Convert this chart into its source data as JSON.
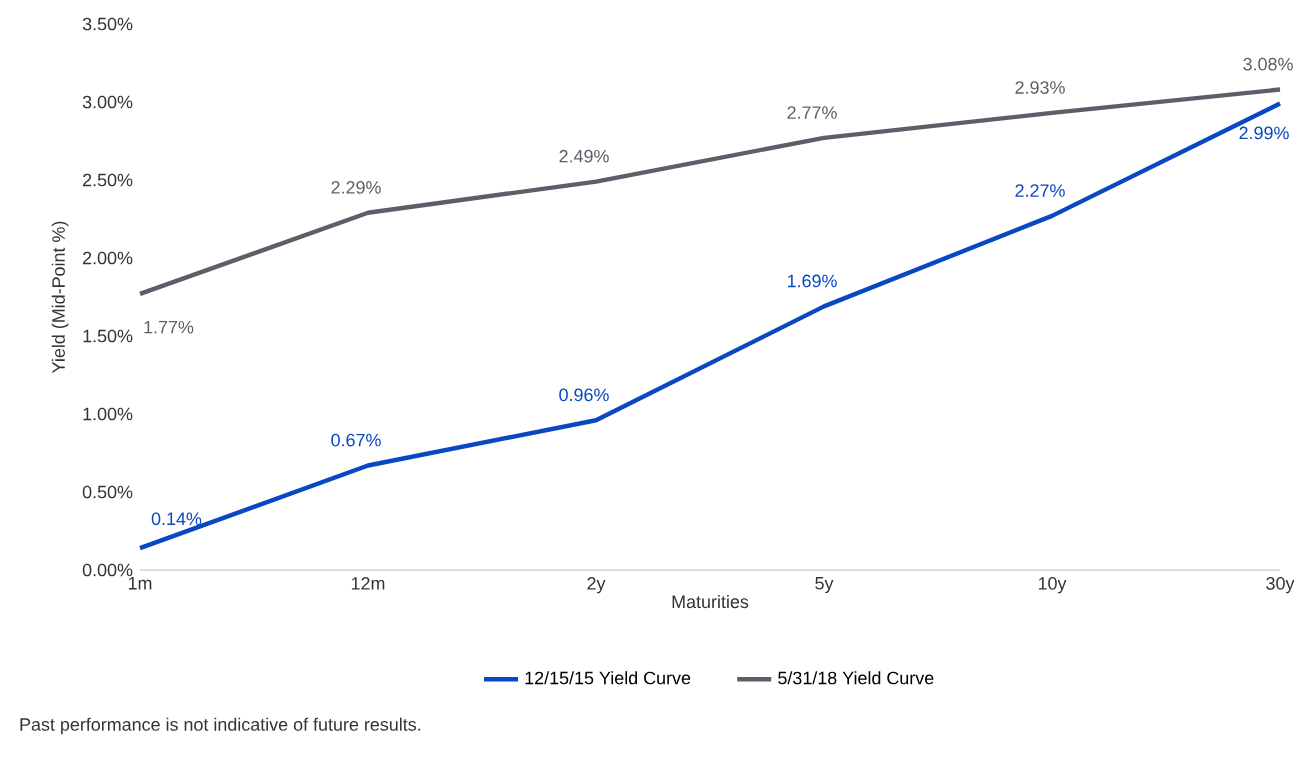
{
  "chart_data": {
    "type": "line",
    "xlabel": "Maturities",
    "ylabel": "Yield (Mid-Point %)",
    "categories": [
      "1m",
      "12m",
      "2y",
      "5y",
      "10y",
      "30y"
    ],
    "ylim": [
      0,
      3.5
    ],
    "yticks": [
      {
        "value": 0,
        "label": "0.00%"
      },
      {
        "value": 0.5,
        "label": "0.50%"
      },
      {
        "value": 1,
        "label": "1.00%"
      },
      {
        "value": 1.5,
        "label": "1.50%"
      },
      {
        "value": 2,
        "label": "2.00%"
      },
      {
        "value": 2.5,
        "label": "2.50%"
      },
      {
        "value": 3,
        "label": "3.00%"
      },
      {
        "value": 3.5,
        "label": "3.50%"
      }
    ],
    "series": [
      {
        "name": "12/15/15 Yield Curve",
        "color": "#0a47c2",
        "values": [
          0.14,
          0.67,
          0.96,
          1.69,
          2.27,
          2.99
        ],
        "value_labels": [
          "0.14%",
          "0.67%",
          "0.96%",
          "1.69%",
          "2.27%",
          "2.99%"
        ]
      },
      {
        "name": "5/31/18 Yield Curve",
        "color": "#5b6068",
        "values": [
          1.77,
          2.29,
          2.49,
          2.77,
          2.93,
          3.08
        ],
        "value_labels": [
          "1.77%",
          "2.29%",
          "2.49%",
          "2.77%",
          "2.93%",
          "3.08%"
        ]
      }
    ],
    "legend": "bottom",
    "grid": false,
    "marker": "none",
    "line_style": "solid",
    "annotations": [
      "Past performance is not indicative of future results."
    ]
  }
}
